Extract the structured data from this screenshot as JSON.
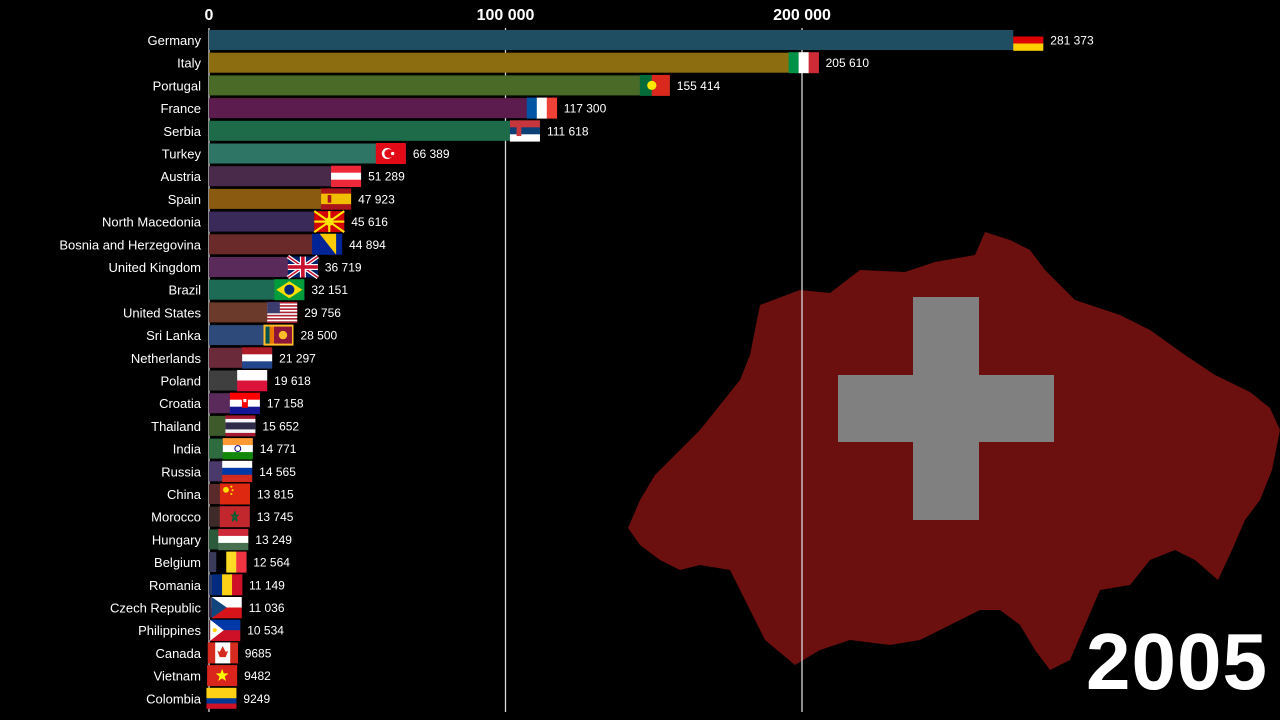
{
  "chart_data": {
    "type": "bar",
    "orientation": "horizontal",
    "title": "",
    "xlabel": "",
    "ylabel": "",
    "xlim": [
      0,
      300000
    ],
    "x_ticks": [
      0,
      100000,
      200000
    ],
    "x_tick_labels": [
      "0",
      "100 000",
      "200 000"
    ],
    "grid": true,
    "year_label": "2005",
    "categories": [
      "Germany",
      "Italy",
      "Portugal",
      "France",
      "Serbia",
      "Turkey",
      "Austria",
      "Spain",
      "North Macedonia",
      "Bosnia and Herzegovina",
      "United Kingdom",
      "Brazil",
      "United States",
      "Sri Lanka",
      "Netherlands",
      "Poland",
      "Croatia",
      "Thailand",
      "India",
      "Russia",
      "China",
      "Morocco",
      "Hungary",
      "Belgium",
      "Romania",
      "Czech Republic",
      "Philippines",
      "Canada",
      "Vietnam",
      "Colombia"
    ],
    "values": [
      281373,
      205610,
      155414,
      117300,
      111618,
      66389,
      51289,
      47923,
      45616,
      44894,
      36719,
      32151,
      29756,
      28500,
      21297,
      19618,
      17158,
      15652,
      14771,
      14565,
      13815,
      13745,
      13249,
      12564,
      11149,
      11036,
      10534,
      9685,
      9482,
      9249
    ],
    "value_labels": [
      "281 373",
      "205 610",
      "155 414",
      "117 300",
      "111 618",
      "66 389",
      "51 289",
      "47 923",
      "45 616",
      "44 894",
      "36 719",
      "32 151",
      "29 756",
      "28 500",
      "21 297",
      "19 618",
      "17 158",
      "15 652",
      "14 771",
      "14 565",
      "13 815",
      "13 745",
      "13 249",
      "12 564",
      "11 149",
      "11 036",
      "10 534",
      "9685",
      "9482",
      "9249"
    ],
    "bar_colors": [
      "#1f4e63",
      "#8c6d10",
      "#4a6b27",
      "#5c1d4e",
      "#1e6b4a",
      "#2e7566",
      "#4a2a4a",
      "#8a5a10",
      "#3a2a5a",
      "#6b2a2a",
      "#5a2a5a",
      "#1e6b55",
      "#6b3a2a",
      "#2e4a7a",
      "#6b2a3a",
      "#3f3f3f",
      "#5a2a5a",
      "#3f5a2a",
      "#2e6b3f",
      "#4a3a6b",
      "#5a2a2a",
      "#3f2a2a",
      "#2a5a3a",
      "#3a3a5a",
      "#2a3a6b",
      "#3a2a4a",
      "#5a2a3a",
      "#6b2a2a",
      "#4a2a2a",
      "#3a4a6b"
    ],
    "flags": [
      "germany-flag",
      "italy-flag",
      "portugal-flag",
      "france-flag",
      "serbia-flag",
      "turkey-flag",
      "austria-flag",
      "spain-flag",
      "north-macedonia-flag",
      "bosnia-flag",
      "uk-flag",
      "brazil-flag",
      "usa-flag",
      "sri-lanka-flag",
      "netherlands-flag",
      "poland-flag",
      "croatia-flag",
      "thailand-flag",
      "india-flag",
      "russia-flag",
      "china-flag",
      "morocco-flag",
      "hungary-flag",
      "belgium-flag",
      "romania-flag",
      "czech-flag",
      "philippines-flag",
      "canada-flag",
      "vietnam-flag",
      "colombia-flag"
    ],
    "map": "switzerland-map",
    "map_color": "#6b0f0f",
    "cross_color": "#808080"
  }
}
